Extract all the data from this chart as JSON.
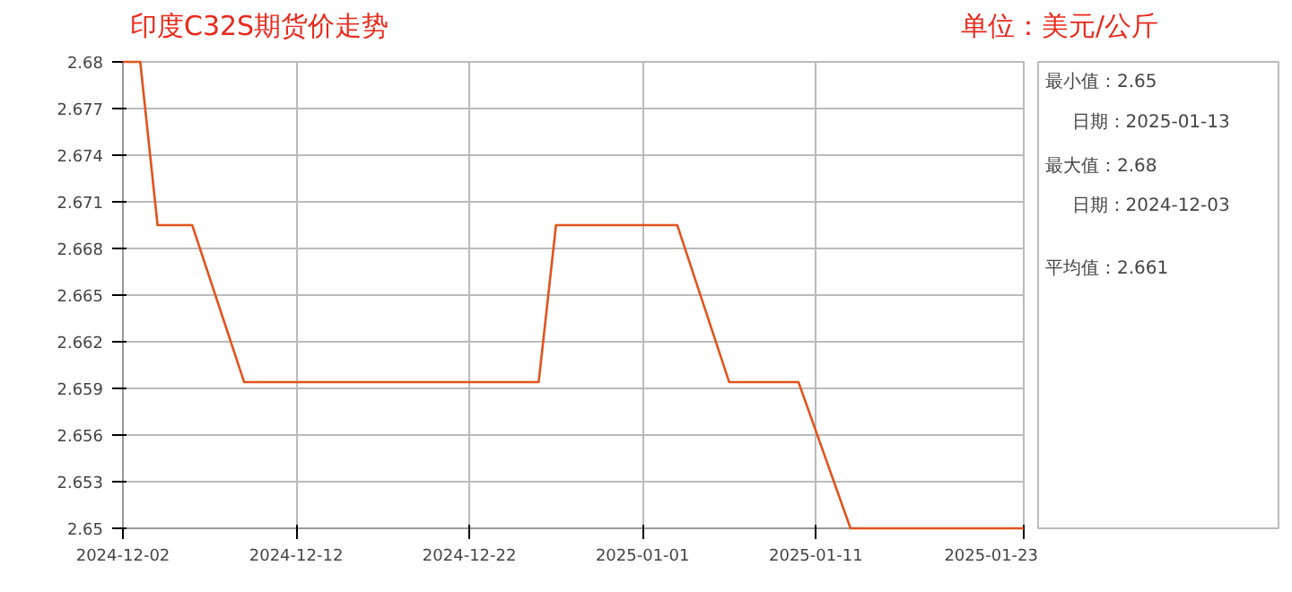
{
  "chart_data": [
    {
      "type": "line",
      "title": "印度C32S期货价走势",
      "subtitle": "单位：美元/公斤",
      "x": [
        "2024-12-02",
        "2024-12-03",
        "2024-12-04",
        "2024-12-05",
        "2024-12-06",
        "2024-12-09",
        "2024-12-10",
        "2024-12-11",
        "2024-12-12",
        "2024-12-13",
        "2024-12-16",
        "2024-12-17",
        "2024-12-18",
        "2024-12-19",
        "2024-12-20",
        "2024-12-23",
        "2024-12-24",
        "2024-12-25",
        "2024-12-26",
        "2024-12-27",
        "2024-12-30",
        "2024-12-31",
        "2025-01-01",
        "2025-01-02",
        "2025-01-03",
        "2025-01-06",
        "2025-01-07",
        "2025-01-08",
        "2025-01-09",
        "2025-01-10",
        "2025-01-13",
        "2025-01-14",
        "2025-01-15",
        "2025-01-16",
        "2025-01-17",
        "2025-01-20",
        "2025-01-21",
        "2025-01-22",
        "2025-01-23"
      ],
      "series": [
        {
          "color": "#e0541e",
          "values": [
            2.68,
            2.68,
            2.6695,
            2.6695,
            2.6695,
            2.6594,
            2.6594,
            2.6594,
            2.6594,
            2.6594,
            2.6594,
            2.6594,
            2.6594,
            2.6594,
            2.6594,
            2.6594,
            2.6594,
            2.6594,
            2.6594,
            2.6695,
            2.6695,
            2.6695,
            2.6695,
            2.6695,
            2.6695,
            2.6594,
            2.6594,
            2.6594,
            2.6594,
            2.6594,
            2.65,
            2.65,
            2.65,
            2.65,
            2.65,
            2.65,
            2.65,
            2.65,
            2.65
          ]
        }
      ],
      "xlim": [
        "2024-12-02",
        "2025-01-23"
      ],
      "xticks": [
        "2024-12-02",
        "2024-12-12",
        "2024-12-22",
        "2025-01-01",
        "2025-01-11",
        "2025-01-23"
      ],
      "ylim": [
        2.65,
        2.68
      ],
      "yticks": [
        2.65,
        2.653,
        2.656,
        2.659,
        2.662,
        2.665,
        2.668,
        2.671,
        2.674,
        2.677,
        2.68
      ],
      "grid": true,
      "marker": "none",
      "line_style": "solid"
    },
    {
      "type": "other",
      "annotations": [
        "最小值：2.65",
        "日期：2025-01-13",
        "最大值：2.68",
        "日期：2024-12-03",
        "平均值：2.661"
      ]
    }
  ]
}
